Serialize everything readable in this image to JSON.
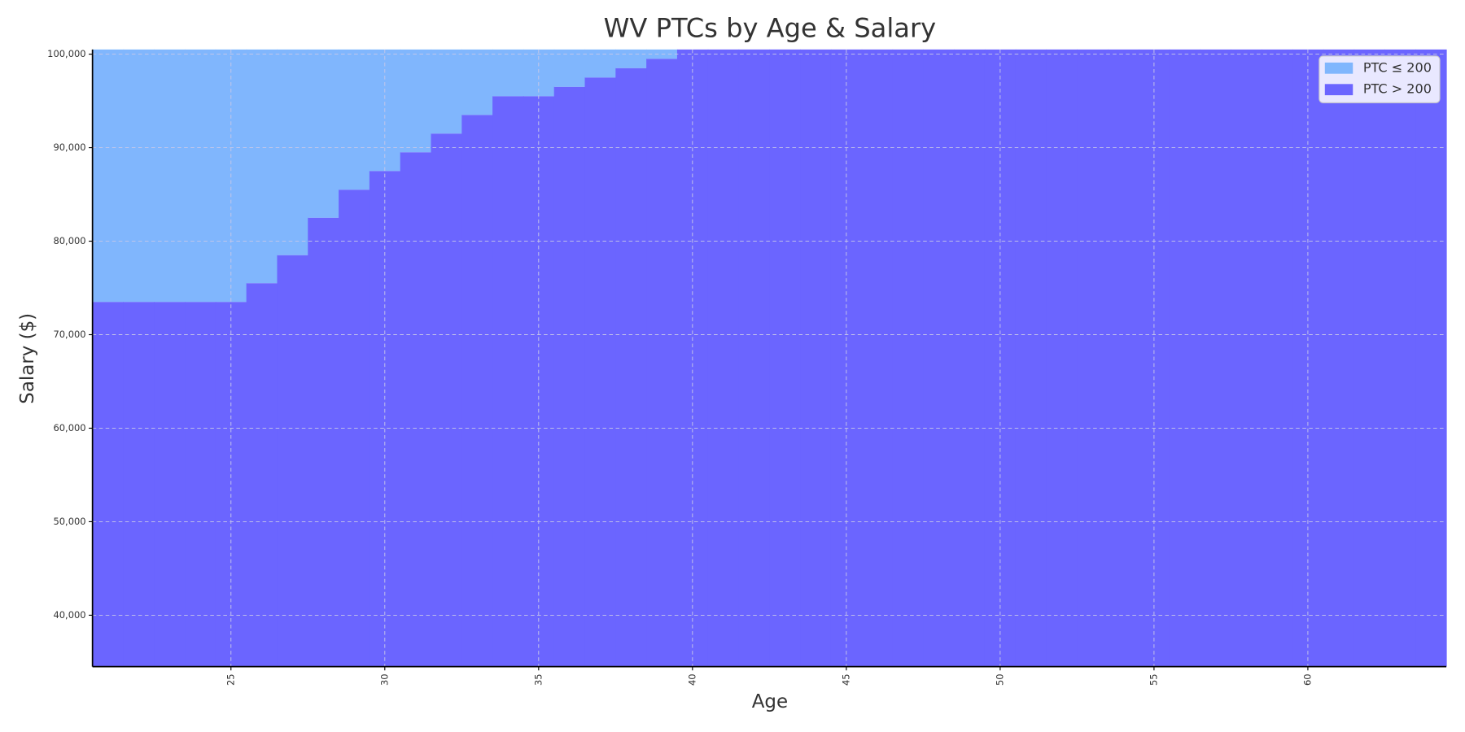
{
  "chart_data": {
    "type": "step-region",
    "title": "WV PTCs by Age & Salary",
    "x_label": "Age",
    "y_label": "Salary ($)",
    "x": [
      21,
      22,
      23,
      24,
      25,
      26,
      27,
      28,
      29,
      30,
      31,
      32,
      33,
      34,
      35,
      36,
      37,
      38,
      39,
      40,
      41,
      42,
      43,
      44,
      45,
      46,
      47,
      48,
      49,
      50,
      51,
      52,
      53,
      54,
      55,
      56,
      57,
      58,
      59,
      60,
      61,
      62,
      63,
      64
    ],
    "series": [
      {
        "name": "PTC ≤ 200",
        "color": "#80b6fd",
        "fill_to": "top",
        "values": [
          73500,
          73500,
          73500,
          73500,
          73500,
          75500,
          78500,
          82500,
          85500,
          87500,
          89500,
          91500,
          93500,
          95500,
          95500,
          96500,
          97500,
          98500,
          99500,
          null,
          null,
          null,
          null,
          null,
          null,
          null,
          null,
          null,
          null,
          null,
          null,
          null,
          null,
          null,
          null,
          null,
          null,
          null,
          null,
          null,
          null,
          null,
          null,
          null
        ]
      },
      {
        "name": "PTC > 200",
        "color": "#6b65ff",
        "fill_to": "bottom",
        "values": [
          73500,
          73500,
          73500,
          73500,
          73500,
          75500,
          78500,
          82500,
          85500,
          87500,
          89500,
          91500,
          93500,
          95500,
          95500,
          96500,
          97500,
          98500,
          99500,
          100500,
          100500,
          100500,
          100500,
          100500,
          100500,
          100500,
          100500,
          100500,
          100500,
          100500,
          100500,
          100500,
          100500,
          100500,
          100500,
          100500,
          100500,
          100500,
          100500,
          100500,
          100500,
          100500,
          100500,
          100500
        ]
      }
    ],
    "xlim": [
      20.5,
      64.5
    ],
    "ylim": [
      34500,
      100500
    ],
    "xticks": [
      25,
      30,
      35,
      40,
      45,
      50,
      55,
      60
    ],
    "yticks": [
      {
        "value": 40000,
        "label": "40,000"
      },
      {
        "value": 50000,
        "label": "50,000"
      },
      {
        "value": 60000,
        "label": "60,000"
      },
      {
        "value": 70000,
        "label": "70,000"
      },
      {
        "value": 80000,
        "label": "80,000"
      },
      {
        "value": 90000,
        "label": "90,000"
      },
      {
        "value": 100000,
        "label": "100,000"
      }
    ],
    "grid": true,
    "legend": "upper right"
  }
}
